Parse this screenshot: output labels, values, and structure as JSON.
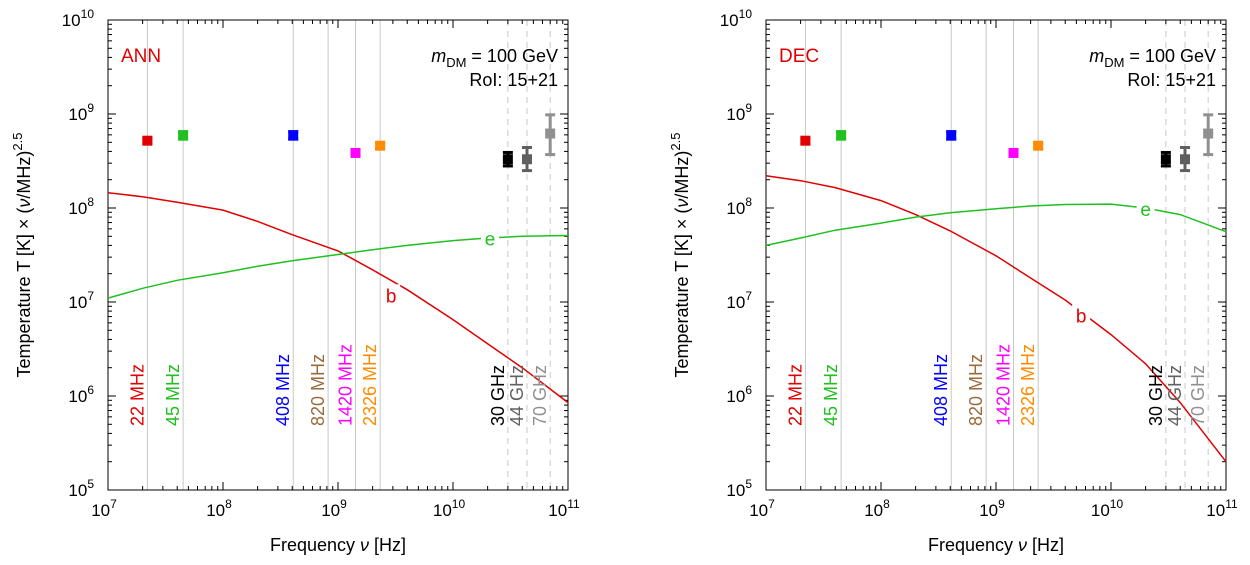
{
  "chart_data": [
    {
      "type": "line",
      "panel_label": "ANN",
      "annotation_line1_italic": "m",
      "annotation_line1_sub": "DM",
      "annotation_line1_rest": " = 100 GeV",
      "annotation_line2": "RoI: 15+21",
      "xlabel": "Frequency ν [Hz]",
      "ylabel": "Temperature T [K] × (ν/MHz)2.5",
      "x_scale": "log",
      "y_scale": "log",
      "xlim": [
        10000000.0,
        100000000000.0
      ],
      "ylim": [
        100000.0,
        10000000000.0
      ],
      "x_ticks": [
        {
          "value": 10000000.0,
          "label": "10",
          "exp": "7"
        },
        {
          "value": 100000000.0,
          "label": "10",
          "exp": "8"
        },
        {
          "value": 1000000000.0,
          "label": "10",
          "exp": "9"
        },
        {
          "value": 10000000000.0,
          "label": "10",
          "exp": "10"
        },
        {
          "value": 100000000000.0,
          "label": "10",
          "exp": "11"
        }
      ],
      "y_ticks": [
        {
          "value": 100000.0,
          "label": "10",
          "exp": "5"
        },
        {
          "value": 1000000.0,
          "label": "10",
          "exp": "6"
        },
        {
          "value": 10000000.0,
          "label": "10",
          "exp": "7"
        },
        {
          "value": 100000000.0,
          "label": "10",
          "exp": "8"
        },
        {
          "value": 1000000000.0,
          "label": "10",
          "exp": "9"
        },
        {
          "value": 10000000000.0,
          "label": "10",
          "exp": "10"
        }
      ],
      "series": [
        {
          "name": "b",
          "color": "#e00000",
          "x": [
            10000000.0,
            20000000.0,
            40000000.0,
            100000000.0,
            200000000.0,
            400000000.0,
            1000000000.0,
            2000000000.0,
            4000000000.0,
            10000000000.0,
            20000000000.0,
            40000000000.0,
            100000000000.0
          ],
          "y": [
            145000000.0,
            132000000.0,
            115000000.0,
            95000000.0,
            72000000.0,
            52000000.0,
            35000000.0,
            22000000.0,
            13500000.0,
            6500000.0,
            3600000.0,
            2000000.0,
            850000.0
          ],
          "label_x": 2900000000.0,
          "label_y": 11500000.0
        },
        {
          "name": "e",
          "color": "#20c020",
          "x": [
            10000000.0,
            20000000.0,
            40000000.0,
            100000000.0,
            200000000.0,
            400000000.0,
            1000000000.0,
            2000000000.0,
            4000000000.0,
            10000000000.0,
            20000000000.0,
            40000000000.0,
            100000000000.0
          ],
          "y": [
            11000000.0,
            14000000.0,
            17000000.0,
            20500000.0,
            24000000.0,
            27500000.0,
            32000000.0,
            36000000.0,
            40000000.0,
            45000000.0,
            48000000.0,
            50000000.0,
            51000000.0
          ],
          "label_x": 21000000000.0,
          "label_y": 46000000.0
        }
      ],
      "markers": [
        {
          "label": "22 MHz",
          "freq": 22000000.0,
          "value": 520000000.0,
          "err_low": 490000000.0,
          "err_high": 550000000.0,
          "color": "#e00000",
          "guide": "solid"
        },
        {
          "label": "45 MHz",
          "freq": 45000000.0,
          "value": 590000000.0,
          "err_low": 540000000.0,
          "err_high": 650000000.0,
          "color": "#20c020",
          "guide": "solid"
        },
        {
          "label": "408 MHz",
          "freq": 408000000.0,
          "value": 590000000.0,
          "err_low": 540000000.0,
          "err_high": 650000000.0,
          "color": "#0000ff",
          "guide": "solid"
        },
        {
          "label": "820 MHz",
          "freq": 820000000.0,
          "value": null,
          "err_low": null,
          "err_high": null,
          "color": "#9a6a3a",
          "guide": "solid"
        },
        {
          "label": "1420 MHz",
          "freq": 1420000000.0,
          "value": 385000000.0,
          "err_low": 360000000.0,
          "err_high": 410000000.0,
          "color": "#ff00ff",
          "guide": "solid"
        },
        {
          "label": "2326 MHz",
          "freq": 2326000000.0,
          "value": 460000000.0,
          "err_low": 430000000.0,
          "err_high": 490000000.0,
          "color": "#ff8c00",
          "guide": "solid"
        },
        {
          "label": "30 GHz",
          "freq": 30000000000.0,
          "value": 330000000.0,
          "err_low": 280000000.0,
          "err_high": 390000000.0,
          "color": "#000000",
          "guide": "dashed"
        },
        {
          "label": "44 GHz",
          "freq": 44000000000.0,
          "value": 330000000.0,
          "err_low": 250000000.0,
          "err_high": 440000000.0,
          "color": "#606060",
          "guide": "dashed"
        },
        {
          "label": "70 GHz",
          "freq": 70000000000.0,
          "value": 620000000.0,
          "err_low": 370000000.0,
          "err_high": 980000000.0,
          "color": "#909090",
          "guide": "dashed"
        }
      ]
    },
    {
      "type": "line",
      "panel_label": "DEC",
      "annotation_line1_italic": "m",
      "annotation_line1_sub": "DM",
      "annotation_line1_rest": " = 100 GeV",
      "annotation_line2": "RoI: 15+21",
      "xlabel": "Frequency ν [Hz]",
      "ylabel": "Temperature T [K] × (ν/MHz)2.5",
      "x_scale": "log",
      "y_scale": "log",
      "xlim": [
        10000000.0,
        100000000000.0
      ],
      "ylim": [
        100000.0,
        10000000000.0
      ],
      "x_ticks": [
        {
          "value": 10000000.0,
          "label": "10",
          "exp": "7"
        },
        {
          "value": 100000000.0,
          "label": "10",
          "exp": "8"
        },
        {
          "value": 1000000000.0,
          "label": "10",
          "exp": "9"
        },
        {
          "value": 10000000000.0,
          "label": "10",
          "exp": "10"
        },
        {
          "value": 100000000000.0,
          "label": "10",
          "exp": "11"
        }
      ],
      "y_ticks": [
        {
          "value": 100000.0,
          "label": "10",
          "exp": "5"
        },
        {
          "value": 1000000.0,
          "label": "10",
          "exp": "6"
        },
        {
          "value": 10000000.0,
          "label": "10",
          "exp": "7"
        },
        {
          "value": 100000000.0,
          "label": "10",
          "exp": "8"
        },
        {
          "value": 1000000000.0,
          "label": "10",
          "exp": "9"
        },
        {
          "value": 10000000000.0,
          "label": "10",
          "exp": "10"
        }
      ],
      "series": [
        {
          "name": "b",
          "color": "#e00000",
          "x": [
            10000000.0,
            20000000.0,
            40000000.0,
            100000000.0,
            200000000.0,
            400000000.0,
            1000000000.0,
            2000000000.0,
            4000000000.0,
            10000000000.0,
            20000000000.0,
            40000000000.0,
            100000000000.0
          ],
          "y": [
            220000000.0,
            195000000.0,
            165000000.0,
            120000000.0,
            85000000.0,
            57000000.0,
            31000000.0,
            18000000.0,
            10500000.0,
            4500000.0,
            2200000.0,
            850000.0,
            200000.0
          ],
          "label_x": 5500000000.0,
          "label_y": 7000000.0
        },
        {
          "name": "e",
          "color": "#20c020",
          "x": [
            10000000.0,
            20000000.0,
            40000000.0,
            100000000.0,
            200000000.0,
            400000000.0,
            1000000000.0,
            2000000000.0,
            4000000000.0,
            10000000000.0,
            20000000000.0,
            40000000000.0,
            100000000000.0
          ],
          "y": [
            40000000.0,
            48000000.0,
            58000000.0,
            69000000.0,
            80000000.0,
            89000000.0,
            98000000.0,
            105000000.0,
            109000000.0,
            110000000.0,
            100000000.0,
            85000000.0,
            56000000.0
          ],
          "label_x": 20000000000.0,
          "label_y": 95000000.0
        }
      ],
      "markers": [
        {
          "label": "22 MHz",
          "freq": 22000000.0,
          "value": 520000000.0,
          "err_low": 490000000.0,
          "err_high": 550000000.0,
          "color": "#e00000",
          "guide": "solid"
        },
        {
          "label": "45 MHz",
          "freq": 45000000.0,
          "value": 590000000.0,
          "err_low": 540000000.0,
          "err_high": 650000000.0,
          "color": "#20c020",
          "guide": "solid"
        },
        {
          "label": "408 MHz",
          "freq": 408000000.0,
          "value": 590000000.0,
          "err_low": 540000000.0,
          "err_high": 650000000.0,
          "color": "#0000ff",
          "guide": "solid"
        },
        {
          "label": "820 MHz",
          "freq": 820000000.0,
          "value": null,
          "err_low": null,
          "err_high": null,
          "color": "#9a6a3a",
          "guide": "solid"
        },
        {
          "label": "1420 MHz",
          "freq": 1420000000.0,
          "value": 385000000.0,
          "err_low": 360000000.0,
          "err_high": 410000000.0,
          "color": "#ff00ff",
          "guide": "solid"
        },
        {
          "label": "2326 MHz",
          "freq": 2326000000.0,
          "value": 460000000.0,
          "err_low": 430000000.0,
          "err_high": 490000000.0,
          "color": "#ff8c00",
          "guide": "solid"
        },
        {
          "label": "30 GHz",
          "freq": 30000000000.0,
          "value": 330000000.0,
          "err_low": 280000000.0,
          "err_high": 390000000.0,
          "color": "#000000",
          "guide": "dashed"
        },
        {
          "label": "44 GHz",
          "freq": 44000000000.0,
          "value": 330000000.0,
          "err_low": 250000000.0,
          "err_high": 440000000.0,
          "color": "#606060",
          "guide": "dashed"
        },
        {
          "label": "70 GHz",
          "freq": 70000000000.0,
          "value": 620000000.0,
          "err_low": 370000000.0,
          "err_high": 980000000.0,
          "color": "#909090",
          "guide": "dashed"
        }
      ]
    }
  ]
}
